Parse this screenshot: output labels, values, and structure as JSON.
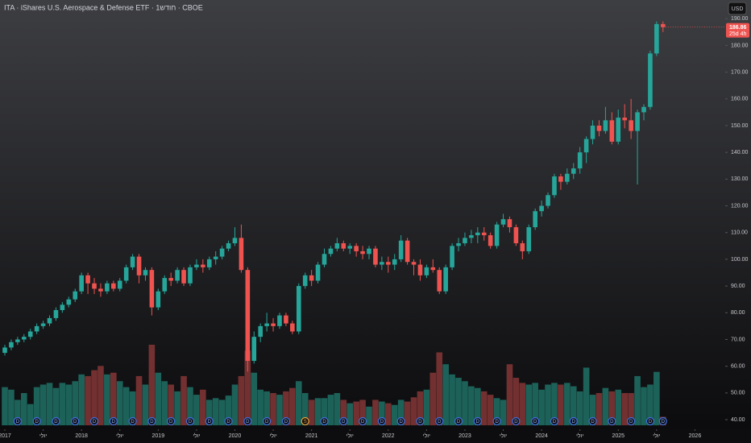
{
  "chart_data": {
    "type": "candlestick",
    "title": "ITA · iShares U.S. Aerospace & Defense ETF · 1חודש · CBOE",
    "currency": "USD",
    "countdown": "25d 4h",
    "open": [
      65,
      67,
      69,
      70,
      71,
      73,
      75,
      76,
      78,
      81,
      83,
      85,
      88,
      94,
      91,
      89,
      88,
      91,
      89,
      92,
      97,
      101,
      94,
      96,
      82,
      88,
      93,
      92,
      96,
      91,
      97,
      98,
      97,
      100,
      101,
      104,
      106,
      108,
      96,
      62,
      71,
      75,
      76,
      75,
      79,
      76,
      73,
      90,
      94,
      92,
      98,
      102,
      104,
      106,
      104,
      105,
      103,
      102,
      104,
      98,
      99,
      98,
      100,
      107,
      99,
      98,
      94,
      97,
      96,
      88,
      97,
      105,
      106,
      108,
      109,
      110,
      109,
      105,
      113,
      115,
      112,
      106,
      103,
      112,
      118,
      120,
      124,
      131,
      129,
      132,
      134,
      140,
      145,
      150,
      148,
      152,
      144,
      153,
      152,
      148,
      155,
      157,
      177,
      188
    ],
    "high": [
      68,
      70,
      71,
      72,
      74,
      76,
      77,
      79,
      82,
      84,
      86,
      89,
      95,
      95,
      93,
      91,
      92,
      92,
      93,
      98,
      102,
      102,
      97,
      97,
      89,
      94,
      95,
      97,
      97,
      98,
      100,
      100,
      101,
      103,
      105,
      107,
      112,
      113,
      97,
      73,
      76,
      80,
      78,
      80,
      80,
      77,
      91,
      95,
      96,
      99,
      104,
      105,
      108,
      107,
      106,
      106,
      105,
      105,
      105,
      101,
      101,
      102,
      109,
      108,
      100,
      100,
      98,
      100,
      97,
      98,
      106,
      108,
      110,
      111,
      112,
      112,
      110,
      114,
      117,
      116,
      113,
      107,
      113,
      119,
      122,
      125,
      132,
      132,
      134,
      136,
      142,
      146,
      152,
      152,
      157,
      155,
      156,
      158,
      160,
      156,
      158,
      178,
      189,
      189
    ],
    "low": [
      64,
      66,
      68,
      69,
      70,
      72,
      74,
      75,
      77,
      80,
      82,
      84,
      87,
      87,
      87,
      86,
      87,
      88,
      88,
      91,
      96,
      91,
      92,
      79,
      81,
      87,
      90,
      91,
      90,
      90,
      96,
      95,
      96,
      98,
      100,
      103,
      105,
      95,
      58,
      61,
      69,
      73,
      73,
      74,
      75,
      72,
      72,
      89,
      90,
      91,
      97,
      101,
      103,
      103,
      102,
      101,
      100,
      100,
      97,
      96,
      95,
      96,
      99,
      98,
      94,
      92,
      93,
      95,
      87,
      87,
      96,
      103,
      105,
      106,
      106,
      107,
      104,
      104,
      112,
      110,
      105,
      100,
      102,
      111,
      116,
      119,
      123,
      126,
      128,
      130,
      132,
      136,
      143,
      146,
      147,
      143,
      143,
      149,
      145,
      128,
      152,
      156,
      176,
      185
    ],
    "close": [
      67,
      69,
      70,
      71,
      73,
      75,
      76,
      78,
      81,
      83,
      85,
      88,
      94,
      91,
      89,
      88,
      91,
      89,
      92,
      97,
      101,
      94,
      96,
      82,
      88,
      93,
      92,
      96,
      91,
      97,
      98,
      97,
      100,
      101,
      104,
      106,
      108,
      96,
      62,
      71,
      75,
      76,
      75,
      79,
      76,
      73,
      90,
      94,
      92,
      98,
      102,
      104,
      106,
      104,
      105,
      103,
      102,
      104,
      98,
      99,
      98,
      100,
      107,
      99,
      98,
      94,
      97,
      96,
      88,
      97,
      105,
      106,
      108,
      109,
      110,
      109,
      105,
      113,
      115,
      112,
      106,
      103,
      112,
      118,
      120,
      124,
      131,
      129,
      132,
      134,
      140,
      145,
      150,
      148,
      152,
      144,
      153,
      152,
      148,
      155,
      157,
      177,
      188,
      186.86
    ],
    "volume": [
      45,
      42,
      30,
      38,
      25,
      45,
      48,
      50,
      44,
      50,
      48,
      52,
      60,
      58,
      65,
      70,
      60,
      62,
      52,
      45,
      40,
      58,
      48,
      95,
      62,
      52,
      48,
      40,
      58,
      45,
      36,
      42,
      30,
      32,
      30,
      35,
      48,
      58,
      88,
      62,
      42,
      40,
      38,
      36,
      40,
      44,
      52,
      38,
      30,
      32,
      32,
      36,
      38,
      30,
      26,
      28,
      30,
      22,
      30,
      28,
      26,
      24,
      30,
      28,
      33,
      40,
      42,
      62,
      86,
      72,
      60,
      56,
      52,
      46,
      44,
      40,
      36,
      32,
      30,
      72,
      56,
      50,
      48,
      50,
      42,
      48,
      50,
      48,
      50,
      46,
      40,
      68,
      36,
      38,
      44,
      40,
      42,
      38,
      38,
      58,
      45,
      48,
      63,
      10
    ],
    "events": [
      null,
      null,
      "D",
      null,
      null,
      "D",
      null,
      null,
      "D",
      null,
      null,
      "D",
      null,
      null,
      "D",
      null,
      null,
      "D",
      null,
      null,
      "D",
      null,
      null,
      "D",
      null,
      null,
      "D",
      null,
      null,
      "D",
      null,
      null,
      "D",
      null,
      null,
      "D",
      null,
      null,
      "D",
      null,
      null,
      "D",
      null,
      null,
      "D",
      null,
      null,
      "S",
      null,
      null,
      "D",
      null,
      null,
      "D",
      null,
      null,
      "D",
      null,
      null,
      "D",
      null,
      null,
      "D",
      null,
      null,
      "D",
      null,
      null,
      "D",
      null,
      null,
      "D",
      null,
      null,
      "D",
      null,
      null,
      "D",
      null,
      null,
      "D",
      null,
      null,
      "D",
      null,
      null,
      "D",
      null,
      null,
      "D",
      null,
      null,
      "D",
      null,
      null,
      "D",
      null,
      null,
      "D",
      null,
      null,
      "D",
      null,
      "D"
    ],
    "up_color": "#26a69a",
    "down_color": "#ef5350",
    "volume_up_color": "#1f6b62",
    "volume_down_color": "#7e3434",
    "ylim": [
      37,
      197
    ],
    "yticks": [
      {
        "value": 40,
        "label": "40.00"
      },
      {
        "value": 50,
        "label": "50.00"
      },
      {
        "value": 60,
        "label": "60.00"
      },
      {
        "value": 70,
        "label": "70.00"
      },
      {
        "value": 80,
        "label": "80.00"
      },
      {
        "value": 90,
        "label": "90.00"
      },
      {
        "value": 100,
        "label": "100.00"
      },
      {
        "value": 110,
        "label": "110.00"
      },
      {
        "value": 120,
        "label": "120.00"
      },
      {
        "value": 130,
        "label": "130.00"
      },
      {
        "value": 140,
        "label": "140.00"
      },
      {
        "value": 150,
        "label": "150.00"
      },
      {
        "value": 160,
        "label": "160.00"
      },
      {
        "value": 170,
        "label": "170.00"
      },
      {
        "value": 180,
        "label": "180.00"
      },
      {
        "value": 190,
        "label": "190.00"
      }
    ],
    "xticks": [
      {
        "value": 0,
        "label": "2017"
      },
      {
        "value": 6,
        "label": "יולי"
      },
      {
        "value": 12,
        "label": "2018"
      },
      {
        "value": 18,
        "label": "יולי"
      },
      {
        "value": 24,
        "label": "2019"
      },
      {
        "value": 30,
        "label": "יולי"
      },
      {
        "value": 36,
        "label": "2020"
      },
      {
        "value": 42,
        "label": "יולי"
      },
      {
        "value": 48,
        "label": "2021"
      },
      {
        "value": 54,
        "label": "יולי"
      },
      {
        "value": 60,
        "label": "2022"
      },
      {
        "value": 66,
        "label": "יולי"
      },
      {
        "value": 72,
        "label": "2023"
      },
      {
        "value": 78,
        "label": "יולי"
      },
      {
        "value": 84,
        "label": "2024"
      },
      {
        "value": 90,
        "label": "יולי"
      },
      {
        "value": 96,
        "label": "2025"
      },
      {
        "value": 102,
        "label": "יולי"
      },
      {
        "value": 108,
        "label": "2026"
      }
    ]
  }
}
